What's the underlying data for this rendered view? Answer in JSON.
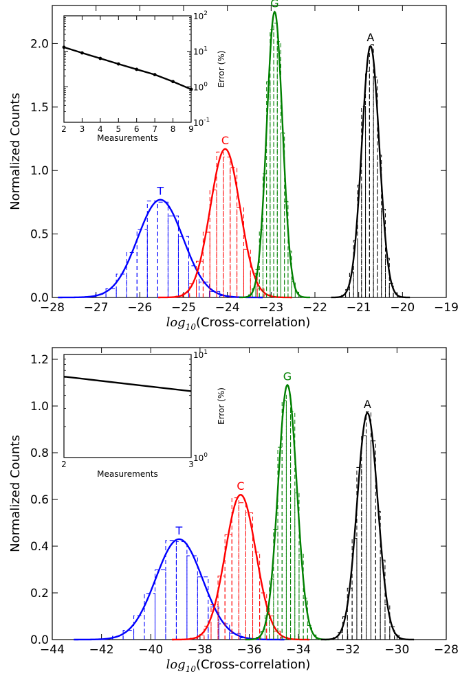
{
  "colors": {
    "T": "#0000ff",
    "C": "#ff0000",
    "G": "#008000",
    "A": "#000000",
    "axis": "#000000"
  },
  "chart_data": [
    {
      "type": "line",
      "panel": "top",
      "xlabel_math": "log",
      "xlabel_sub": "10",
      "xlabel_text": "(Cross-correlation)",
      "ylabel": "Normalized Counts",
      "xlim": [
        -28,
        -19
      ],
      "ylim": [
        0,
        2.3
      ],
      "xticks": [
        -28,
        -27,
        -26,
        -25,
        -24,
        -23,
        -22,
        -21,
        -20,
        -19
      ],
      "xtick_labels": [
        "−28",
        "−27",
        "−26",
        "−25",
        "−24",
        "−23",
        "−22",
        "−21",
        "−20",
        "−19"
      ],
      "yticks": [
        0.0,
        0.5,
        1.0,
        1.5,
        2.0
      ],
      "ytick_labels": [
        "0.0",
        "0.5",
        "1.0",
        "1.5",
        "2.0"
      ],
      "series": [
        {
          "name": "T",
          "peak_x": -25.53,
          "peak_y": 0.77,
          "sigma": 0.52
        },
        {
          "name": "C",
          "peak_x": -24.05,
          "peak_y": 1.17,
          "sigma": 0.34
        },
        {
          "name": "G",
          "peak_x": -22.92,
          "peak_y": 2.25,
          "sigma": 0.18
        },
        {
          "name": "A",
          "peak_x": -20.73,
          "peak_y": 1.98,
          "sigma": 0.2
        }
      ],
      "inset": {
        "xlabel": "Measurements",
        "ylabel": "Error (%)",
        "y_scale": "log",
        "xlim": [
          2,
          9
        ],
        "ylim_exp": [
          -1,
          2
        ],
        "xticks": [
          2,
          3,
          4,
          5,
          6,
          7,
          8,
          9
        ],
        "xtick_labels": [
          "2",
          "3",
          "4",
          "5",
          "6",
          "7",
          "8",
          "9"
        ],
        "ytick_exps": [
          -1,
          0,
          1,
          2
        ],
        "ytick_labels": [
          {
            "base": "10",
            "exp": "-1"
          },
          {
            "base": "10",
            "exp": "0"
          },
          {
            "base": "10",
            "exp": "1"
          },
          {
            "base": "10",
            "exp": "2"
          }
        ],
        "x": [
          2,
          3,
          4,
          5,
          6,
          7,
          8,
          9
        ],
        "y": [
          13,
          9,
          6.3,
          4.4,
          3.1,
          2.2,
          1.4,
          0.85
        ]
      }
    },
    {
      "type": "line",
      "panel": "bottom",
      "xlabel_math": "log",
      "xlabel_sub": "10",
      "xlabel_text": "(Cross-correlation)",
      "ylabel": "Normalized Counts",
      "xlim": [
        -44,
        -28
      ],
      "ylim": [
        0,
        1.25
      ],
      "xticks": [
        -44,
        -42,
        -40,
        -38,
        -36,
        -34,
        -32,
        -30,
        -28
      ],
      "xtick_labels": [
        "−44",
        "−42",
        "−40",
        "−38",
        "−36",
        "−34",
        "−32",
        "−30",
        "−28"
      ],
      "yticks": [
        0.0,
        0.2,
        0.4,
        0.6,
        0.8,
        1.0,
        1.2
      ],
      "ytick_labels": [
        "0.0",
        "0.2",
        "0.4",
        "0.6",
        "0.8",
        "1.0",
        "1.2"
      ],
      "series": [
        {
          "name": "T",
          "peak_x": -38.85,
          "peak_y": 0.43,
          "sigma": 0.95
        },
        {
          "name": "C",
          "peak_x": -36.35,
          "peak_y": 0.62,
          "sigma": 0.62
        },
        {
          "name": "G",
          "peak_x": -34.45,
          "peak_y": 1.09,
          "sigma": 0.38
        },
        {
          "name": "A",
          "peak_x": -31.2,
          "peak_y": 0.97,
          "sigma": 0.42
        }
      ],
      "inset": {
        "xlabel": "Measurements",
        "ylabel": "Error (%)",
        "y_scale": "log",
        "xlim": [
          2,
          3
        ],
        "ylim_exp": [
          0,
          1
        ],
        "xticks": [
          2,
          3
        ],
        "xtick_labels": [
          "2",
          "3"
        ],
        "ytick_exps": [
          0,
          1
        ],
        "ytick_labels": [
          {
            "base": "10",
            "exp": "0"
          },
          {
            "base": "10",
            "exp": "1"
          }
        ],
        "x": [
          2,
          3
        ],
        "y": [
          6.1,
          4.4
        ]
      }
    }
  ]
}
